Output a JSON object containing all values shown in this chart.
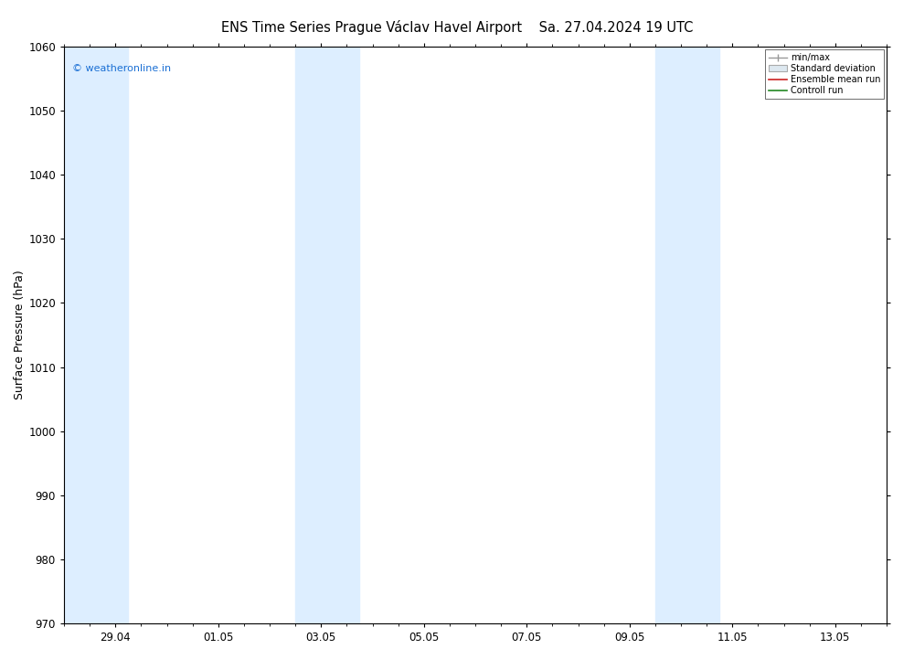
{
  "title_left": "ENS Time Series Prague Václav Havel Airport",
  "title_right": "Sa. 27.04.2024 19 UTC",
  "ylabel": "Surface Pressure (hPa)",
  "ylim": [
    970,
    1060
  ],
  "yticks": [
    970,
    980,
    990,
    1000,
    1010,
    1020,
    1030,
    1040,
    1050,
    1060
  ],
  "xtick_labels": [
    "29.04",
    "01.05",
    "03.05",
    "05.05",
    "07.05",
    "09.05",
    "11.05",
    "13.05"
  ],
  "xtick_positions": [
    1.0,
    3.0,
    5.0,
    7.0,
    9.0,
    11.0,
    13.0,
    15.0
  ],
  "xlim": [
    0.0,
    16.0
  ],
  "shaded_bands": [
    {
      "xmin": 0.0,
      "xmax": 0.5
    },
    {
      "xmin": 0.5,
      "xmax": 1.25
    },
    {
      "xmin": 4.5,
      "xmax": 5.0
    },
    {
      "xmin": 5.0,
      "xmax": 5.75
    },
    {
      "xmin": 11.5,
      "xmax": 12.0
    },
    {
      "xmin": 12.0,
      "xmax": 12.75
    }
  ],
  "shade_color": "#ddeeff",
  "watermark": "© weatheronline.in",
  "watermark_color": "#1a6fd4",
  "legend_labels": [
    "min/max",
    "Standard deviation",
    "Ensemble mean run",
    "Controll run"
  ],
  "bg_color": "#ffffff",
  "title_fontsize": 10.5,
  "tick_fontsize": 8.5,
  "ylabel_fontsize": 9
}
